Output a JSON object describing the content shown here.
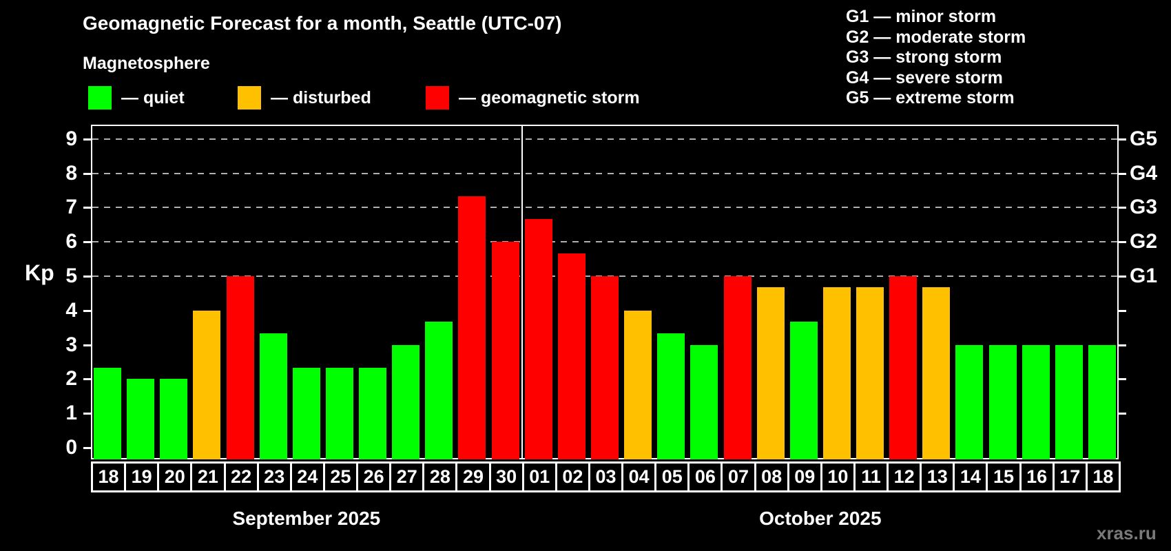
{
  "title": "Geomagnetic Forecast for a month, Seattle (UTC-07)",
  "subtitle": "Magnetosphere",
  "legend": {
    "items": [
      {
        "key": "quiet",
        "label": "— quiet",
        "color": "#00ff00"
      },
      {
        "key": "disturbed",
        "label": "— disturbed",
        "color": "#ffc000"
      },
      {
        "key": "storm",
        "label": "— geomagnetic storm",
        "color": "#ff0000"
      }
    ]
  },
  "storm_scale": {
    "items": [
      {
        "label": "G1 — minor storm"
      },
      {
        "label": "G2 — moderate storm"
      },
      {
        "label": "G3 — strong storm"
      },
      {
        "label": "G4 — severe storm"
      },
      {
        "label": "G5 — extreme storm"
      }
    ]
  },
  "watermark": "xras.ru",
  "chart_data": {
    "type": "bar",
    "title": "Geomagnetic Forecast for a month, Seattle (UTC-07)",
    "xlabel": "",
    "ylabel": "Kp",
    "ylim": [
      -0.35,
      9.75
    ],
    "y_ticks": [
      0,
      1,
      2,
      3,
      4,
      5,
      6,
      7,
      8,
      9
    ],
    "grid": "horizontal dashed gridlines at Kp 5-9 only",
    "gridlines_at": [
      5,
      6,
      7,
      8,
      9
    ],
    "gridline_color": "#b0b0b0",
    "right_axis_labels": [
      {
        "label": "G1",
        "kp": 5
      },
      {
        "label": "G2",
        "kp": 6
      },
      {
        "label": "G3",
        "kp": 7
      },
      {
        "label": "G4",
        "kp": 8
      },
      {
        "label": "G5",
        "kp": 9
      }
    ],
    "status_colors": {
      "quiet": "#00ff00",
      "disturbed": "#ffc000",
      "storm": "#ff0000"
    },
    "months": [
      {
        "label": "September 2025",
        "days": 13
      },
      {
        "label": "October 2025",
        "days": 18
      }
    ],
    "categories": [
      "18",
      "19",
      "20",
      "21",
      "22",
      "23",
      "24",
      "25",
      "26",
      "27",
      "28",
      "29",
      "30",
      "01",
      "02",
      "03",
      "04",
      "05",
      "06",
      "07",
      "08",
      "09",
      "10",
      "11",
      "12",
      "13",
      "14",
      "15",
      "16",
      "17",
      "18"
    ],
    "values": [
      2.33,
      2.0,
      2.0,
      4.0,
      5.0,
      3.33,
      2.33,
      2.33,
      2.33,
      3.0,
      3.67,
      7.33,
      6.0,
      6.67,
      5.67,
      5.0,
      4.0,
      3.33,
      3.0,
      5.0,
      4.67,
      3.67,
      4.67,
      4.67,
      5.0,
      4.67,
      3.0,
      3.0,
      3.0,
      3.0,
      3.0
    ],
    "statuses": [
      "quiet",
      "quiet",
      "quiet",
      "disturbed",
      "storm",
      "quiet",
      "quiet",
      "quiet",
      "quiet",
      "quiet",
      "quiet",
      "storm",
      "storm",
      "storm",
      "storm",
      "storm",
      "disturbed",
      "quiet",
      "quiet",
      "storm",
      "disturbed",
      "quiet",
      "disturbed",
      "disturbed",
      "storm",
      "disturbed",
      "quiet",
      "quiet",
      "quiet",
      "quiet",
      "quiet"
    ]
  }
}
